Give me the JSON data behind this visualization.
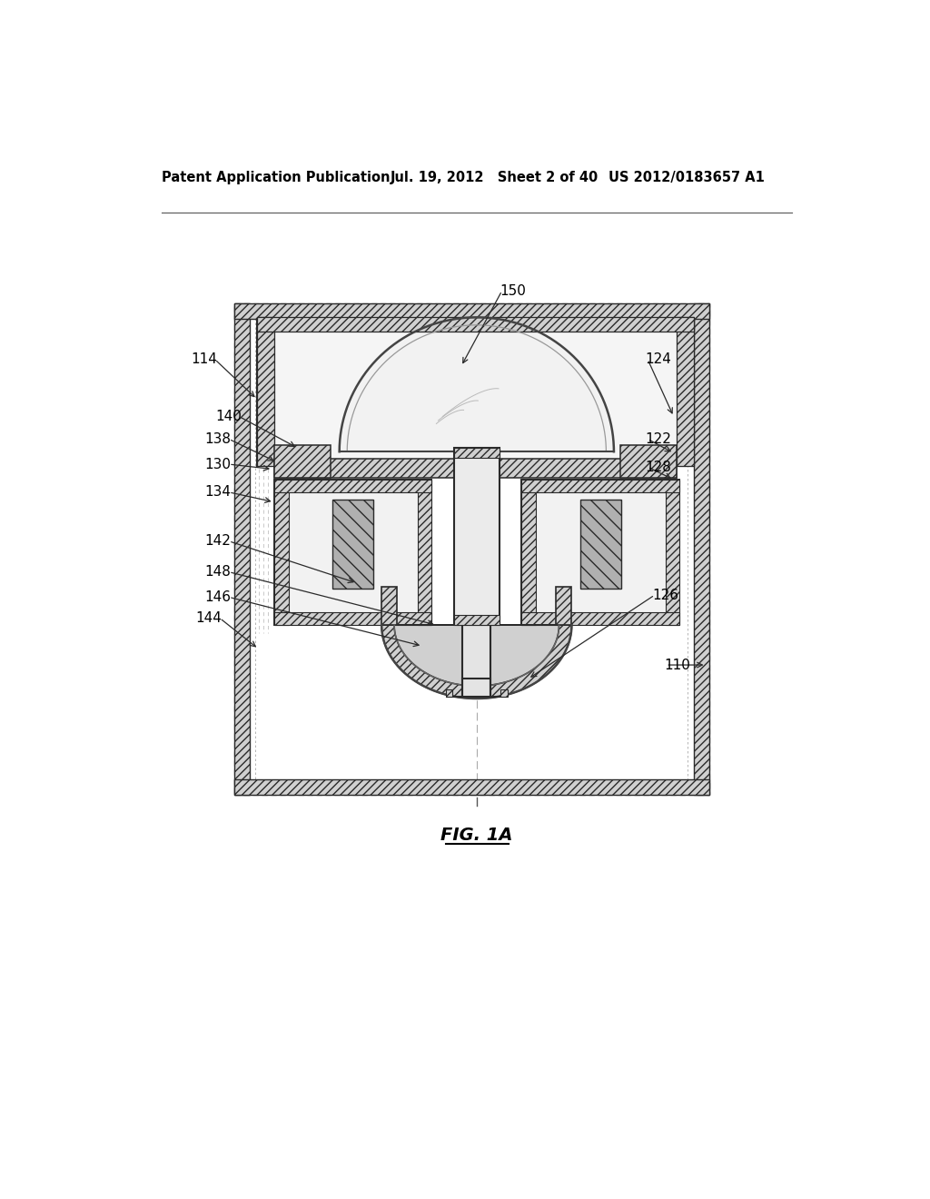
{
  "bg_color": "#ffffff",
  "header_text": "Patent Application Publication",
  "header_date": "Jul. 19, 2012   Sheet 2 of 40",
  "header_patent": "US 2012/0183657 A1",
  "figure_label": "FIG. 1A",
  "line_color": "#2a2a2a",
  "fill_light": "#eeeeee",
  "fill_medium": "#d0d0d0",
  "fill_dark": "#b0b0b0",
  "labels_data": [
    [
      "150",
      545,
      210,
      490,
      318,
      "left"
    ],
    [
      "114",
      143,
      308,
      200,
      365,
      "right"
    ],
    [
      "124",
      752,
      308,
      792,
      390,
      "left"
    ],
    [
      "140",
      178,
      390,
      258,
      435,
      "right"
    ],
    [
      "138",
      163,
      422,
      228,
      455,
      "right"
    ],
    [
      "122",
      752,
      422,
      792,
      442,
      "left"
    ],
    [
      "130",
      163,
      458,
      222,
      465,
      "right"
    ],
    [
      "128",
      752,
      462,
      792,
      480,
      "left"
    ],
    [
      "134",
      163,
      498,
      224,
      512,
      "right"
    ],
    [
      "142",
      163,
      568,
      342,
      628,
      "right"
    ],
    [
      "148",
      163,
      612,
      455,
      688,
      "right"
    ],
    [
      "146",
      163,
      648,
      435,
      718,
      "right"
    ],
    [
      "126",
      762,
      645,
      585,
      765,
      "left"
    ],
    [
      "144",
      150,
      678,
      202,
      722,
      "right"
    ],
    [
      "110",
      778,
      745,
      838,
      745,
      "left"
    ]
  ]
}
